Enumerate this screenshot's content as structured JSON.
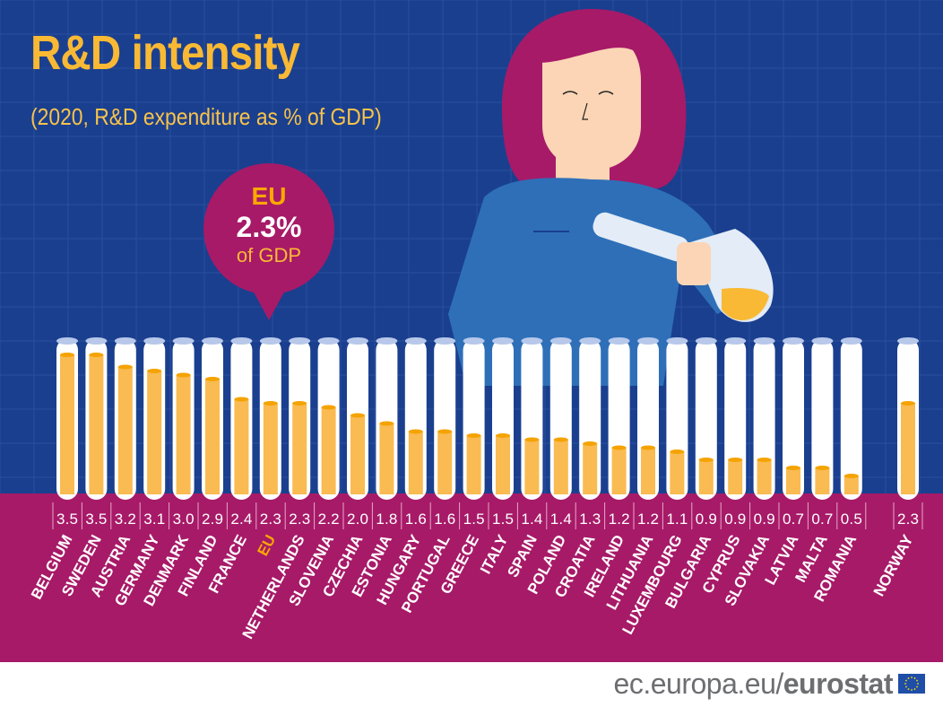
{
  "title": "R&D intensity",
  "subtitle": "(2020, R&D expenditure as % of GDP)",
  "callout": {
    "label": "EU",
    "value": "2.3%",
    "unit": "of GDP"
  },
  "footer": {
    "site": "ec.europa.eu/",
    "brand": "eurostat",
    "logo": "eu-flag"
  },
  "colors": {
    "background": "#1a3f8f",
    "band": "#a71a68",
    "fill": "#f9b934",
    "highlight": "#f9a800",
    "title": "#f9b934"
  },
  "chart_data": {
    "type": "bar",
    "title": "R&D intensity",
    "subtitle": "(2020, R&D expenditure as % of GDP)",
    "categories": [
      "BELGIUM",
      "SWEDEN",
      "AUSTRIA",
      "GERMANY",
      "DENMARK",
      "FINLAND",
      "FRANCE",
      "EU",
      "NETHERLANDS",
      "SLOVENIA",
      "CZECHIA",
      "ESTONIA",
      "HUNGARY",
      "PORTUGAL",
      "GREECE",
      "ITALY",
      "SPAIN",
      "POLAND",
      "CROATIA",
      "IRELAND",
      "LITHUANIA",
      "LUXEMBOURG",
      "BULGARIA",
      "CYPRUS",
      "SLOVAKIA",
      "LATVIA",
      "MALTA",
      "ROMANIA",
      "NORWAY"
    ],
    "values": [
      3.5,
      3.5,
      3.2,
      3.1,
      3.0,
      2.9,
      2.4,
      2.3,
      2.3,
      2.2,
      2.0,
      1.8,
      1.6,
      1.6,
      1.5,
      1.5,
      1.4,
      1.4,
      1.3,
      1.2,
      1.2,
      1.1,
      0.9,
      0.9,
      0.9,
      0.7,
      0.7,
      0.5,
      2.3
    ],
    "value_labels": [
      "3.5",
      "3.5",
      "3.2",
      "3.1",
      "3.0",
      "2.9",
      "2.4",
      "2.3",
      "2.3",
      "2.2",
      "2.0",
      "1.8",
      "1.6",
      "1.6",
      "1.5",
      "1.5",
      "1.4",
      "1.4",
      "1.3",
      "1.2",
      "1.2",
      "1.1",
      "0.9",
      "0.9",
      "0.9",
      "0.7",
      "0.7",
      "0.5",
      "2.3"
    ],
    "highlight": "EU",
    "unit": "% of GDP",
    "ylim": [
      0,
      3.9
    ],
    "grid": false
  }
}
